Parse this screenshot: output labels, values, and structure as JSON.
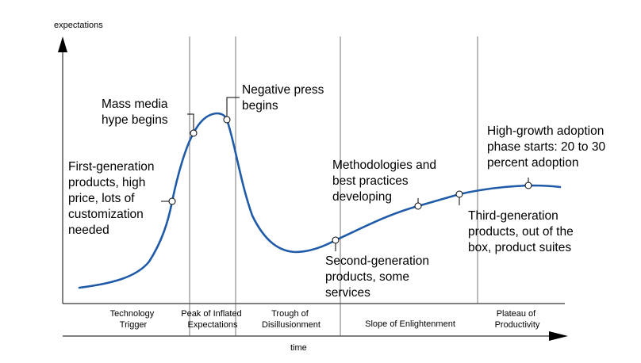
{
  "chart_data": {
    "type": "line",
    "title": "",
    "ylabel": "expectations",
    "xlabel": "time",
    "grid": false,
    "colors": {
      "curve": "#1f5ba8",
      "axis": "#000000",
      "divider": "#555555",
      "marker_fill": "#ffffff"
    },
    "phases": [
      {
        "label_lines": [
          "Technology",
          "Trigger"
        ]
      },
      {
        "label_lines": [
          "Peak of Inflated",
          "Expectations"
        ]
      },
      {
        "label_lines": [
          "Trough of",
          "Disillusionment"
        ]
      },
      {
        "label_lines": [
          "Slope of Enlightenment"
        ]
      },
      {
        "label_lines": [
          "Plateau of",
          "Productivity"
        ]
      }
    ],
    "annotations": [
      {
        "lines": [
          "First-generation",
          "products, high",
          "price, lots of",
          "customization",
          "needed"
        ]
      },
      {
        "lines": [
          "Mass media",
          "hype begins"
        ]
      },
      {
        "lines": [
          "Negative press",
          "begins"
        ]
      },
      {
        "lines": [
          "Second-generation",
          "products, some",
          "services"
        ]
      },
      {
        "lines": [
          "Methodologies and",
          "best practices",
          "developing"
        ]
      },
      {
        "lines": [
          "Third-generation",
          "products, out of the",
          "box, product suites"
        ]
      },
      {
        "lines": [
          "High-growth adoption",
          "phase starts: 20 to 30",
          "percent adoption"
        ]
      }
    ]
  }
}
